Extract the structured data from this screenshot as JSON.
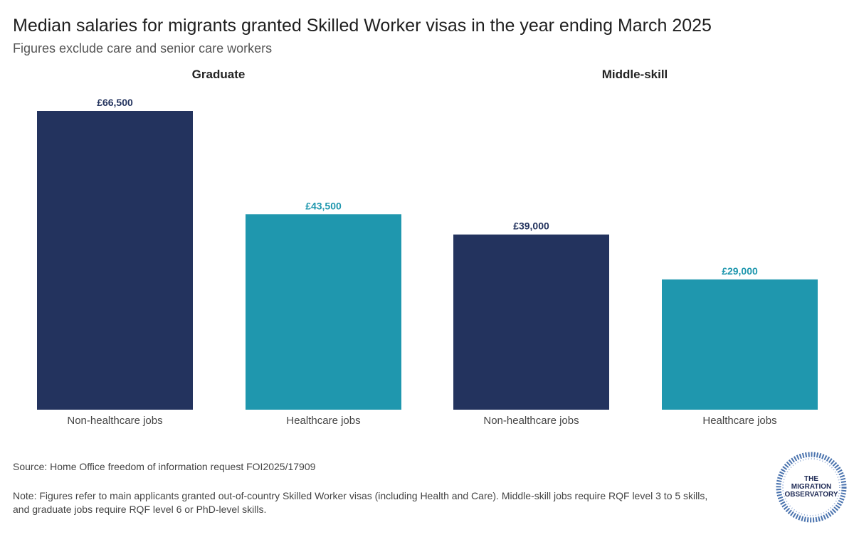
{
  "title": "Median salaries for migrants granted Skilled Worker visas in the year ending March 2025",
  "subtitle": "Figures exclude care and senior care workers",
  "colors": {
    "non_healthcare": "#23335e",
    "healthcare": "#1f97ae",
    "label_dark": "#23335e",
    "label_teal": "#1f97ae"
  },
  "chart_data": {
    "type": "bar",
    "panels": [
      {
        "name": "Graduate",
        "categories": [
          "Non-healthcare jobs",
          "Healthcare jobs"
        ],
        "values": [
          66500,
          43500
        ],
        "labels": [
          "£66,500",
          "£43,500"
        ]
      },
      {
        "name": "Middle-skill",
        "categories": [
          "Non-healthcare jobs",
          "Healthcare jobs"
        ],
        "values": [
          39000,
          29000
        ],
        "labels": [
          "£39,000",
          "£29,000"
        ]
      }
    ],
    "ylim": [
      0,
      70000
    ],
    "xlabel": "",
    "ylabel": ""
  },
  "source": "Source: Home Office freedom of information request FOI2025/17909",
  "note_line1": "Note: Figures refer to main applicants granted out-of-country Skilled Worker visas (including Health and Care). Middle-skill jobs require RQF level 3 to 5 skills,",
  "note_line2": "and graduate jobs require RQF level 6 or PhD-level skills.",
  "logo": {
    "line1": "THE",
    "line2": "MIGRATION",
    "line3": "OBSERVATORY"
  }
}
